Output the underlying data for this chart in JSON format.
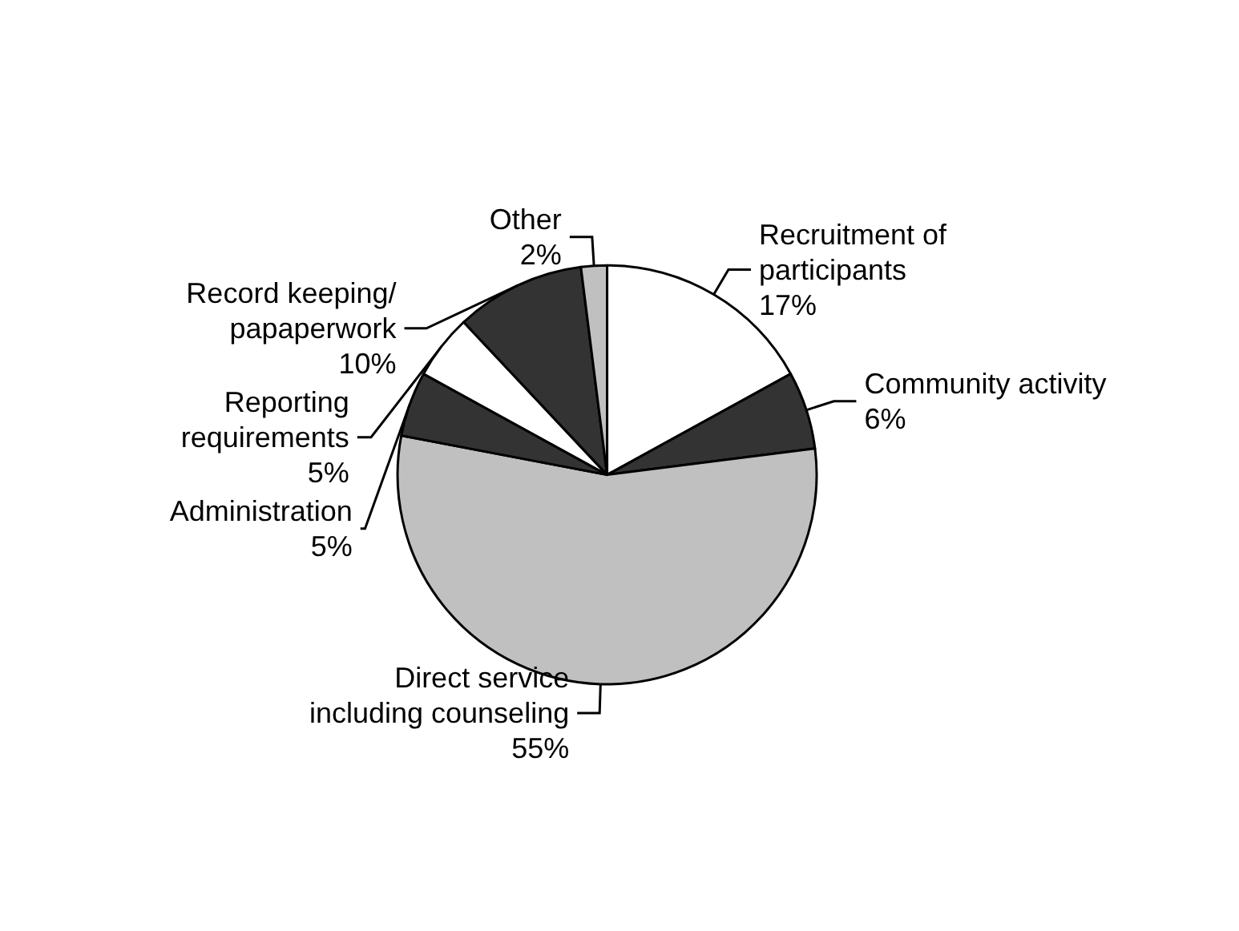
{
  "chart_data": {
    "type": "pie",
    "categories": [
      "Recruitment of\nparticipants",
      "Community activity",
      "Direct service\nincluding counseling",
      "Administration",
      "Reporting\nrequirements",
      "Record keeping/\npapaperwork",
      "Other"
    ],
    "values": [
      17,
      6,
      55,
      5,
      5,
      10,
      2
    ],
    "value_labels": [
      "17%",
      "6%",
      "55%",
      "5%",
      "5%",
      "10%",
      "2%"
    ],
    "colors": [
      "#ffffff",
      "#333333",
      "#c0c0c0",
      "#333333",
      "#ffffff",
      "#333333",
      "#c0c0c0"
    ],
    "legend": false
  }
}
